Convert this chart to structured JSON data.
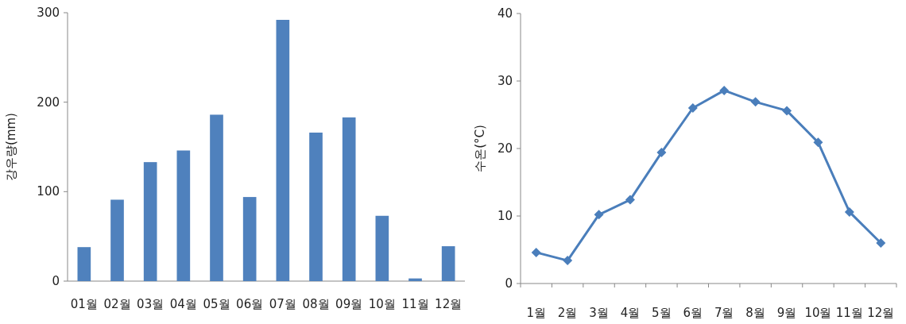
{
  "chart_data": [
    {
      "type": "bar",
      "ylabel": "강우량(mm)",
      "categories": [
        "01월",
        "02월",
        "03월",
        "04월",
        "05월",
        "06월",
        "07월",
        "08월",
        "09월",
        "10월",
        "11월",
        "12월"
      ],
      "series": [
        {
          "color": "#4f81bd",
          "values": [
            38,
            91,
            133,
            146,
            186,
            94,
            292,
            166,
            183,
            73,
            3,
            39
          ]
        }
      ],
      "ylim": [
        0,
        300
      ],
      "yticks": [
        0,
        100,
        200,
        300
      ],
      "grid": false
    },
    {
      "type": "line",
      "ylabel": "수온(°C)",
      "categories": [
        "1월",
        "2월",
        "3월",
        "4월",
        "5월",
        "6월",
        "7월",
        "8월",
        "9월",
        "10월",
        "11월",
        "12월"
      ],
      "series": [
        {
          "color": "#4a7ebb",
          "values": [
            4.6,
            3.4,
            10.2,
            12.4,
            19.4,
            26.0,
            28.6,
            26.9,
            25.6,
            20.9,
            10.6,
            6.0
          ]
        }
      ],
      "ylim": [
        0,
        40
      ],
      "yticks": [
        0,
        10,
        20,
        30,
        40
      ],
      "marker": "diamond",
      "line_style": "solid",
      "grid": false
    }
  ]
}
